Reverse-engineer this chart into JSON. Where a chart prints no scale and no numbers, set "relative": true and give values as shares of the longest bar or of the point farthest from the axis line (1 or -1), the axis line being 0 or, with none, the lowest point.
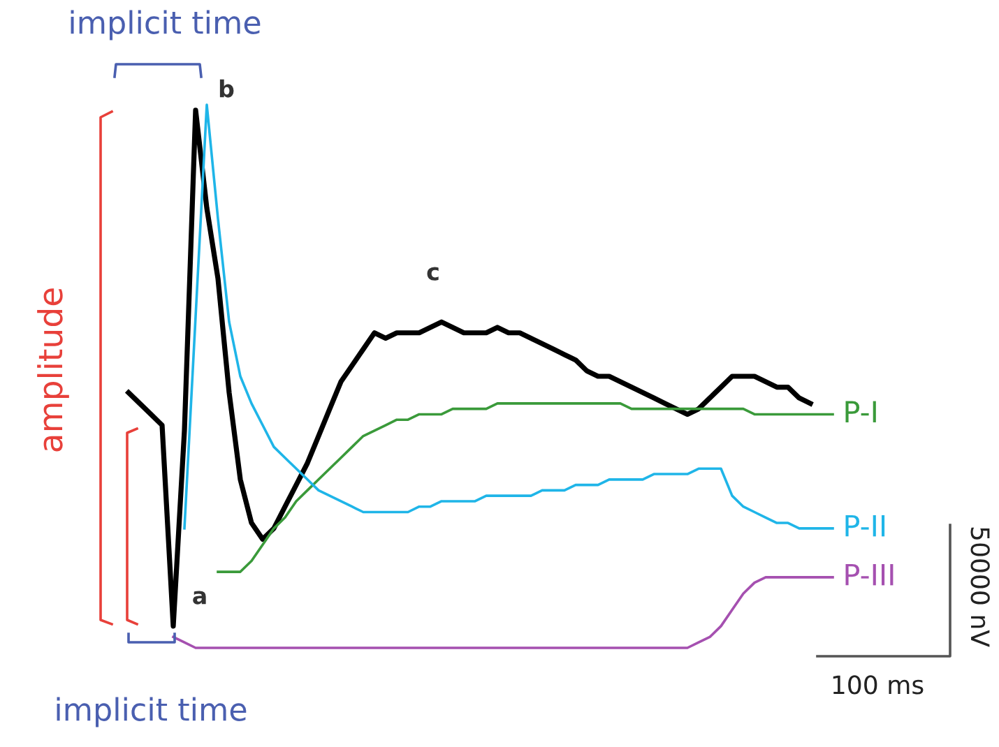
{
  "chart_data": {
    "type": "line",
    "relative": true,
    "legend": false,
    "categories": [
      null,
      null,
      null,
      null,
      null,
      null,
      null,
      null,
      null,
      null,
      null,
      null,
      null,
      null,
      null,
      null,
      null,
      null,
      null,
      null,
      null,
      null,
      null,
      null,
      null,
      null,
      null,
      null,
      null,
      null,
      null,
      null,
      null,
      null,
      null,
      null,
      null,
      null,
      null,
      null,
      null,
      null,
      null,
      null,
      null,
      null,
      null,
      null,
      null,
      null,
      null,
      null,
      null,
      null,
      null,
      null,
      null,
      null,
      null,
      null,
      null,
      null,
      null,
      null
    ],
    "series": [
      {
        "color": "#000000",
        "values": [
          0.47,
          0.45,
          0.43,
          0.41,
          0.04,
          0.4,
          0.99,
          0.81,
          0.68,
          0.47,
          0.31,
          0.23,
          0.2,
          0.22,
          0.26,
          0.3,
          0.34,
          0.39,
          0.44,
          0.49,
          0.52,
          0.55,
          0.58,
          0.57,
          0.58,
          0.58,
          0.58,
          0.59,
          0.6,
          0.59,
          0.58,
          0.58,
          0.58,
          0.59,
          0.58,
          0.58,
          0.57,
          0.56,
          0.55,
          0.54,
          0.53,
          0.51,
          0.5,
          0.5,
          0.49,
          0.48,
          0.47,
          0.46,
          0.45,
          0.44,
          0.43,
          0.44,
          0.46,
          0.48,
          0.5,
          0.5,
          0.5,
          0.49,
          0.48,
          0.48,
          0.46,
          0.45,
          null,
          null
        ]
      },
      {
        "name": "P-I",
        "color": "#3a9a3a",
        "values": [
          null,
          null,
          null,
          null,
          null,
          null,
          null,
          null,
          0.14,
          0.14,
          0.14,
          0.16,
          0.19,
          0.22,
          0.24,
          0.27,
          0.29,
          0.31,
          0.33,
          0.35,
          0.37,
          0.39,
          0.4,
          0.41,
          0.42,
          0.42,
          0.43,
          0.43,
          0.43,
          0.44,
          0.44,
          0.44,
          0.44,
          0.45,
          0.45,
          0.45,
          0.45,
          0.45,
          0.45,
          0.45,
          0.45,
          0.45,
          0.45,
          0.45,
          0.45,
          0.44,
          0.44,
          0.44,
          0.44,
          0.44,
          0.44,
          0.44,
          0.44,
          0.44,
          0.44,
          0.44,
          0.43,
          0.43,
          0.43,
          0.43,
          0.43,
          0.43,
          0.43,
          0.43
        ]
      },
      {
        "name": "P-II",
        "color": "#1fb5e8",
        "values": [
          null,
          null,
          null,
          null,
          null,
          0.22,
          0.61,
          1.0,
          0.79,
          0.6,
          0.5,
          0.45,
          0.41,
          0.37,
          0.35,
          0.33,
          0.31,
          0.29,
          0.28,
          0.27,
          0.26,
          0.25,
          0.25,
          0.25,
          0.25,
          0.25,
          0.26,
          0.26,
          0.27,
          0.27,
          0.27,
          0.27,
          0.28,
          0.28,
          0.28,
          0.28,
          0.28,
          0.29,
          0.29,
          0.29,
          0.3,
          0.3,
          0.3,
          0.31,
          0.31,
          0.31,
          0.31,
          0.32,
          0.32,
          0.32,
          0.32,
          0.33,
          0.33,
          0.33,
          0.28,
          0.26,
          0.25,
          0.24,
          0.23,
          0.23,
          0.22,
          0.22,
          0.22,
          0.22
        ]
      },
      {
        "name": "P-III",
        "color": "#a550b0",
        "values": [
          null,
          null,
          null,
          null,
          0.02,
          0.01,
          0,
          0,
          0,
          0,
          0,
          0,
          0,
          0,
          0,
          0,
          0,
          0,
          0,
          0,
          0,
          0,
          0,
          0,
          0,
          0,
          0,
          0,
          0,
          0,
          0,
          0,
          0,
          0,
          0,
          0,
          0,
          0,
          0,
          0,
          0,
          0,
          0,
          0,
          0,
          0,
          0,
          0,
          0,
          0,
          0,
          0.01,
          0.02,
          0.04,
          0.07,
          0.1,
          0.12,
          0.13,
          0.13,
          0.13,
          0.13,
          0.13,
          0.13,
          0.13
        ]
      }
    ],
    "annotations": [
      "implicit time",
      "implicit time",
      "amplitude",
      "100 ms",
      "50000 nV",
      "a",
      "b",
      "c"
    ]
  }
}
